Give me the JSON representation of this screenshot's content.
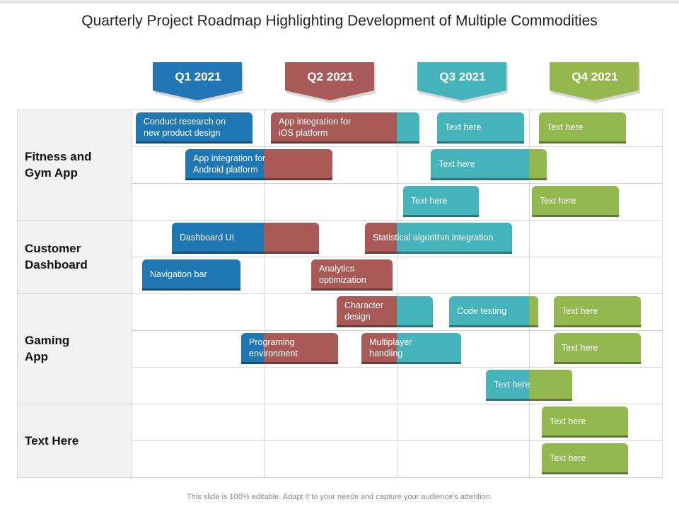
{
  "slide": {
    "title": "Quarterly Project Roadmap Highlighting Development of Multiple Commodities",
    "footer": "This slide is 100% editable. Adapt it to your needs and capture your audience's attention."
  },
  "colors": {
    "blue": "#1f77b4",
    "red": "#a95a57",
    "teal": "#45b3ba",
    "green": "#92b84f"
  },
  "quarters": [
    {
      "label": "Q1 2021",
      "color": "#2377b6",
      "shape": "arrow-down"
    },
    {
      "label": "Q2 2021",
      "color": "#a85b58",
      "shape": "arrow-down"
    },
    {
      "label": "Q3 2021",
      "color": "#45b3ba",
      "shape": "arrow-down"
    },
    {
      "label": "Q4 2021",
      "color": "#94b84e",
      "shape": "arrow-down"
    }
  ],
  "categories": [
    {
      "label": "Fitness and\nGym App"
    },
    {
      "label": "Customer\nDashboard"
    },
    {
      "label": "Gaming\nApp"
    },
    {
      "label": "Text Here"
    }
  ],
  "bars": [
    {
      "text": "Conduct research on\nnew product design",
      "colors": [
        "blue"
      ]
    },
    {
      "text": "App integration for\niOS platform",
      "colors": [
        "red",
        "teal"
      ]
    },
    {
      "text": "Text here",
      "colors": [
        "teal"
      ]
    },
    {
      "text": "Text here",
      "colors": [
        "green"
      ]
    },
    {
      "text": "App integration for\nAndroid platform",
      "colors": [
        "blue",
        "red"
      ]
    },
    {
      "text": "Text here",
      "colors": [
        "teal",
        "green"
      ]
    },
    {
      "text": "Text here",
      "colors": [
        "teal"
      ]
    },
    {
      "text": "Text here",
      "colors": [
        "green"
      ]
    },
    {
      "text": "Dashboard UI",
      "colors": [
        "blue",
        "red"
      ]
    },
    {
      "text": "Statistical algorithm integration",
      "colors": [
        "red",
        "teal"
      ]
    },
    {
      "text": "Navigation bar",
      "colors": [
        "blue"
      ]
    },
    {
      "text": "Analytics\noptimization",
      "colors": [
        "red"
      ]
    },
    {
      "text": "Character\ndesign",
      "colors": [
        "red",
        "teal"
      ]
    },
    {
      "text": "Code testing",
      "colors": [
        "teal",
        "green"
      ]
    },
    {
      "text": "Text here",
      "colors": [
        "green"
      ]
    },
    {
      "text": "Programing\nenvironment",
      "colors": [
        "blue",
        "red"
      ]
    },
    {
      "text": "Multiplayer\nhandling",
      "colors": [
        "red",
        "teal"
      ]
    },
    {
      "text": "Text here",
      "colors": [
        "green"
      ]
    },
    {
      "text": "Text here",
      "colors": [
        "teal",
        "green"
      ]
    },
    {
      "text": "Text here",
      "colors": [
        "green"
      ]
    },
    {
      "text": "Text here",
      "colors": [
        "green"
      ]
    }
  ]
}
